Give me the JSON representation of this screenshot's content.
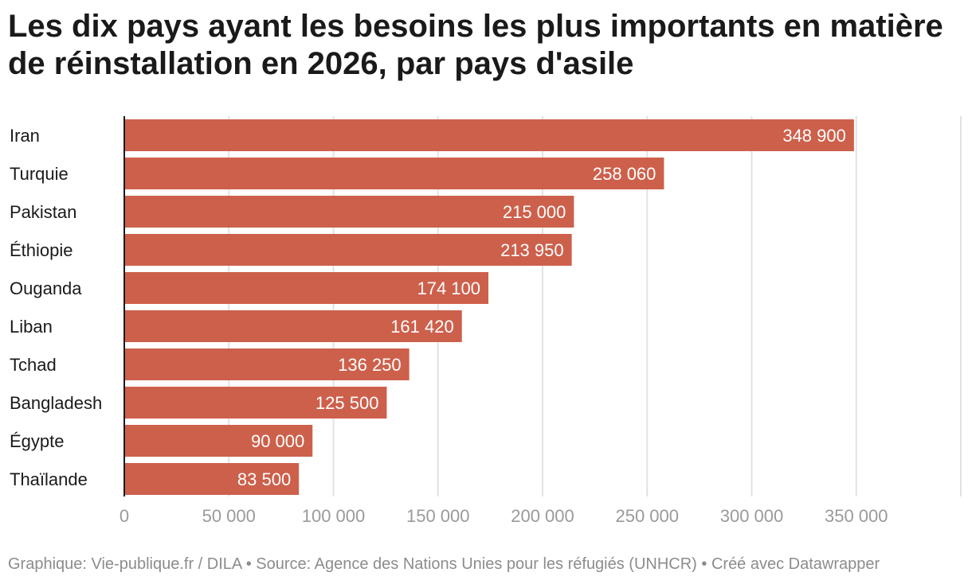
{
  "title": "Les dix pays ayant les besoins les plus importants en matière de réinstallation en 2026, par pays d'asile",
  "footer": "Graphique: Vie-publique.fr / DILA • Source: Agence des Nations Unies pour les réfugiés (UNHCR) • Créé avec Datawrapper",
  "colors": {
    "bar": "#cd604b",
    "grid": "#e2e2e2",
    "axis": "#1a1a1a",
    "tick_text": "#9a9a9a"
  },
  "chart_data": {
    "type": "bar",
    "orientation": "horizontal",
    "title": "Les dix pays ayant les besoins les plus importants en matière de réinstallation en 2026, par pays d'asile",
    "xlabel": "",
    "ylabel": "",
    "categories": [
      "Iran",
      "Turquie",
      "Pakistan",
      "Éthiopie",
      "Ouganda",
      "Liban",
      "Tchad",
      "Bangladesh",
      "Égypte",
      "Thaïlande"
    ],
    "values": [
      348900,
      258060,
      215000,
      213950,
      174100,
      161420,
      136250,
      125500,
      90000,
      83500
    ],
    "value_labels": [
      "348 900",
      "258 060",
      "215 000",
      "213 950",
      "174 100",
      "161 420",
      "136 250",
      "125 500",
      "90 000",
      "83 500"
    ],
    "xlim": [
      0,
      400000
    ],
    "xticks": [
      0,
      50000,
      100000,
      150000,
      200000,
      250000,
      300000,
      350000
    ],
    "xtick_labels": [
      "0",
      "50 000",
      "100 000",
      "150 000",
      "200 000",
      "250 000",
      "300 000",
      "350 000"
    ],
    "grid": true
  }
}
